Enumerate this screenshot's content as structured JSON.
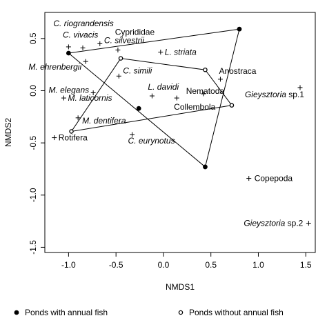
{
  "chart_data": {
    "type": "scatter",
    "xlabel": "NMDS1",
    "ylabel": "NMDS2",
    "xlim": [
      -1.25,
      1.6
    ],
    "ylim": [
      -1.55,
      0.75
    ],
    "xticks": [
      "-1.0",
      "-0.5",
      "0.0",
      "0.5",
      "1.0",
      "1.5"
    ],
    "xtick_values": [
      -1.0,
      -0.5,
      0.0,
      0.5,
      1.0,
      1.5
    ],
    "yticks": [
      "-1.5",
      "-1.0",
      "-0.5",
      "0.0",
      "0.5"
    ],
    "ytick_values": [
      -1.5,
      -1.0,
      -0.5,
      0.0,
      0.5
    ],
    "species": [
      {
        "label": "C. riograndensis",
        "parts": [
          {
            "text": "C. riograndensis",
            "italic": true
          }
        ],
        "x": -1.0,
        "y": 0.42
      },
      {
        "label": "C. vivacis",
        "parts": [
          {
            "text": "C. vivacis",
            "italic": true
          }
        ],
        "x": -0.85,
        "y": 0.41
      },
      {
        "label": "Cyprididae",
        "parts": [
          {
            "text": "Cyprididae",
            "italic": false
          }
        ],
        "x": -0.67,
        "y": 0.45
      },
      {
        "label": "C. silvestrii",
        "parts": [
          {
            "text": "C. silvestrii",
            "italic": true
          }
        ],
        "x": -0.48,
        "y": 0.39
      },
      {
        "label": "L. striata",
        "parts": [
          {
            "text": "L. striata",
            "italic": true
          }
        ],
        "x": -0.03,
        "y": 0.37
      },
      {
        "label": "M. ehrenbergii",
        "parts": [
          {
            "text": "M. ehrenbergii",
            "italic": true
          }
        ],
        "x": -0.82,
        "y": 0.28
      },
      {
        "label": "C. simili",
        "parts": [
          {
            "text": "C. simili",
            "italic": true
          }
        ],
        "x": -0.47,
        "y": 0.14
      },
      {
        "label": "Anostraca",
        "parts": [
          {
            "text": "Anostraca",
            "italic": false
          }
        ],
        "x": 0.6,
        "y": 0.11
      },
      {
        "label": "M. elegans",
        "parts": [
          {
            "text": "M. elegans",
            "italic": true
          }
        ],
        "x": -0.74,
        "y": -0.02
      },
      {
        "label": "L. davidi",
        "parts": [
          {
            "text": "L. davidi",
            "italic": true
          }
        ],
        "x": -0.12,
        "y": -0.05
      },
      {
        "label": "Nematoda",
        "parts": [
          {
            "text": "Nematoda",
            "italic": false
          }
        ],
        "x": 0.42,
        "y": -0.03
      },
      {
        "label": "Gieysztoria sp.1",
        "parts": [
          {
            "text": "Gieysztoria",
            "italic": true
          },
          {
            "text": " sp.1",
            "italic": false
          }
        ],
        "x": 1.44,
        "y": 0.03
      },
      {
        "label": "M. laticornis",
        "parts": [
          {
            "text": "M. laticornis",
            "italic": true
          }
        ],
        "x": -1.05,
        "y": -0.07
      },
      {
        "label": "Collembola",
        "parts": [
          {
            "text": "Collembola",
            "italic": false
          }
        ],
        "x": 0.14,
        "y": -0.07
      },
      {
        "label": "M. dentifera",
        "parts": [
          {
            "text": "M. dentifera",
            "italic": true
          }
        ],
        "x": -0.9,
        "y": -0.26
      },
      {
        "label": "Rotifera",
        "parts": [
          {
            "text": "Rotifera",
            "italic": false
          }
        ],
        "x": -1.15,
        "y": -0.45
      },
      {
        "label": "C. eurynotus",
        "parts": [
          {
            "text": "C. eurynotus",
            "italic": true
          }
        ],
        "x": -0.33,
        "y": -0.42
      },
      {
        "label": "Copepoda",
        "parts": [
          {
            "text": "Copepoda",
            "italic": false
          }
        ],
        "x": 0.9,
        "y": -0.84
      },
      {
        "label": "Gieysztoria sp.2",
        "parts": [
          {
            "text": "Gieysztoria",
            "italic": true
          },
          {
            "text": " sp.2",
            "italic": false
          }
        ],
        "x": 1.53,
        "y": -1.27
      }
    ],
    "groups": [
      {
        "name": "Ponds with annual fish",
        "marker": "filled-circle",
        "color": "#000000",
        "sites": [
          {
            "x": -1.0,
            "y": 0.36
          },
          {
            "x": 0.8,
            "y": 0.59
          },
          {
            "x": -0.26,
            "y": -0.17
          },
          {
            "x": 0.44,
            "y": -0.73
          }
        ],
        "hull": [
          [
            -1.0,
            0.36
          ],
          [
            0.8,
            0.59
          ],
          [
            0.44,
            -0.73
          ]
        ]
      },
      {
        "name": "Ponds without annual fish",
        "marker": "open-circle",
        "color": "#000000",
        "sites": [
          {
            "x": -0.45,
            "y": 0.31
          },
          {
            "x": 0.44,
            "y": 0.2
          },
          {
            "x": 0.72,
            "y": -0.14
          },
          {
            "x": -0.97,
            "y": -0.39
          }
        ],
        "hull": [
          [
            -0.45,
            0.31
          ],
          [
            0.44,
            0.2
          ],
          [
            0.72,
            -0.14
          ],
          [
            -0.97,
            -0.39
          ]
        ]
      }
    ],
    "legend": {
      "placement": "bottom",
      "entries": [
        "Ponds with annual fish",
        "Ponds without annual fish"
      ]
    }
  }
}
